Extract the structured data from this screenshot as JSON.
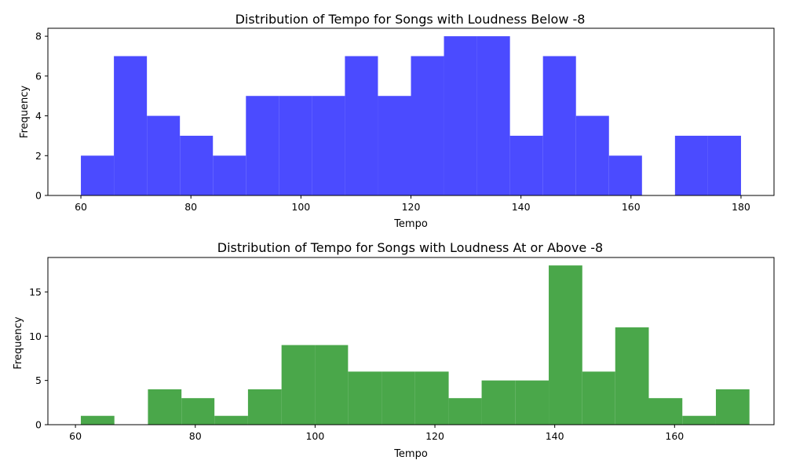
{
  "chart_data": [
    {
      "type": "bar",
      "title": "Distribution of Tempo for Songs with Loudness Below -8",
      "xlabel": "Tempo",
      "ylabel": "Frequency",
      "xlim": [
        54.0,
        186.0
      ],
      "ylim": [
        0,
        8.4
      ],
      "xticks": [
        60,
        80,
        100,
        120,
        140,
        160,
        180
      ],
      "yticks": [
        0,
        2,
        4,
        6,
        8
      ],
      "color": "#4b4bff",
      "bins": [
        {
          "x0": 60,
          "x1": 66,
          "count": 2
        },
        {
          "x0": 66,
          "x1": 72,
          "count": 7
        },
        {
          "x0": 72,
          "x1": 78,
          "count": 4
        },
        {
          "x0": 78,
          "x1": 84,
          "count": 3
        },
        {
          "x0": 84,
          "x1": 90,
          "count": 2
        },
        {
          "x0": 90,
          "x1": 96,
          "count": 5
        },
        {
          "x0": 96,
          "x1": 102,
          "count": 5
        },
        {
          "x0": 102,
          "x1": 108,
          "count": 5
        },
        {
          "x0": 108,
          "x1": 114,
          "count": 7
        },
        {
          "x0": 114,
          "x1": 120,
          "count": 5
        },
        {
          "x0": 120,
          "x1": 126,
          "count": 7
        },
        {
          "x0": 126,
          "x1": 132,
          "count": 8
        },
        {
          "x0": 132,
          "x1": 138,
          "count": 8
        },
        {
          "x0": 138,
          "x1": 144,
          "count": 3
        },
        {
          "x0": 144,
          "x1": 150,
          "count": 7
        },
        {
          "x0": 150,
          "x1": 156,
          "count": 4
        },
        {
          "x0": 156,
          "x1": 162,
          "count": 2
        },
        {
          "x0": 162,
          "x1": 168,
          "count": 0
        },
        {
          "x0": 168,
          "x1": 174,
          "count": 3
        },
        {
          "x0": 174,
          "x1": 180,
          "count": 3
        }
      ]
    },
    {
      "type": "bar",
      "title": "Distribution of Tempo for Songs with Loudness At or Above -8",
      "xlabel": "Tempo",
      "ylabel": "Frequency",
      "xlim": [
        55.4,
        176.6
      ],
      "ylim": [
        0,
        18.9
      ],
      "xticks": [
        60,
        80,
        100,
        120,
        140,
        160
      ],
      "yticks": [
        0,
        5,
        10,
        15
      ],
      "color": "#4aa74a",
      "bins": [
        {
          "x0": 60.9,
          "x1": 66.5,
          "count": 1
        },
        {
          "x0": 66.5,
          "x1": 72.1,
          "count": 0
        },
        {
          "x0": 72.1,
          "x1": 77.7,
          "count": 4
        },
        {
          "x0": 77.7,
          "x1": 83.2,
          "count": 3
        },
        {
          "x0": 83.2,
          "x1": 88.8,
          "count": 1
        },
        {
          "x0": 88.8,
          "x1": 94.4,
          "count": 4
        },
        {
          "x0": 94.4,
          "x1": 100.0,
          "count": 9
        },
        {
          "x0": 100.0,
          "x1": 105.5,
          "count": 9
        },
        {
          "x0": 105.5,
          "x1": 111.1,
          "count": 6
        },
        {
          "x0": 111.1,
          "x1": 116.7,
          "count": 6
        },
        {
          "x0": 116.7,
          "x1": 122.3,
          "count": 6
        },
        {
          "x0": 122.3,
          "x1": 127.8,
          "count": 3
        },
        {
          "x0": 127.8,
          "x1": 133.4,
          "count": 5
        },
        {
          "x0": 133.4,
          "x1": 139.0,
          "count": 5
        },
        {
          "x0": 139.0,
          "x1": 144.6,
          "count": 18
        },
        {
          "x0": 144.6,
          "x1": 150.1,
          "count": 6
        },
        {
          "x0": 150.1,
          "x1": 155.7,
          "count": 11
        },
        {
          "x0": 155.7,
          "x1": 161.3,
          "count": 3
        },
        {
          "x0": 161.3,
          "x1": 166.9,
          "count": 1
        },
        {
          "x0": 166.9,
          "x1": 172.5,
          "count": 4
        }
      ]
    }
  ]
}
